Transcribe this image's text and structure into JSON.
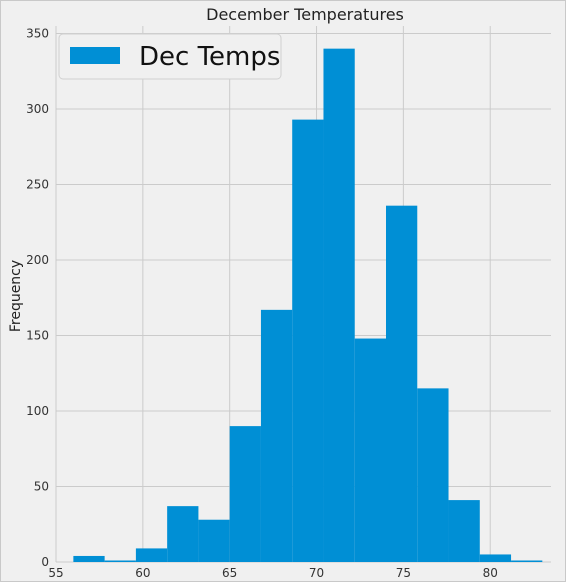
{
  "chart_data": {
    "type": "bar",
    "title": "December Temperatures",
    "xlabel": "",
    "ylabel": "Frequency",
    "legend": {
      "placement": "top-left",
      "label": "Dec Temps"
    },
    "bar_color": "#008fd5",
    "grid": true,
    "xlim": [
      55,
      83.5
    ],
    "ylim": [
      0,
      355
    ],
    "xticks": [
      55,
      60,
      65,
      70,
      75,
      80
    ],
    "yticks": [
      0,
      50,
      100,
      150,
      200,
      250,
      300,
      350
    ],
    "bins": [
      {
        "x0": 56.0,
        "x1": 57.8,
        "value": 4
      },
      {
        "x0": 57.8,
        "x1": 59.6,
        "value": 1
      },
      {
        "x0": 59.6,
        "x1": 61.4,
        "value": 9
      },
      {
        "x0": 61.4,
        "x1": 63.2,
        "value": 37
      },
      {
        "x0": 63.2,
        "x1": 65.0,
        "value": 28
      },
      {
        "x0": 65.0,
        "x1": 66.8,
        "value": 90
      },
      {
        "x0": 66.8,
        "x1": 68.6,
        "value": 167
      },
      {
        "x0": 68.6,
        "x1": 70.4,
        "value": 293
      },
      {
        "x0": 70.4,
        "x1": 72.2,
        "value": 340
      },
      {
        "x0": 72.2,
        "x1": 74.0,
        "value": 148
      },
      {
        "x0": 74.0,
        "x1": 75.8,
        "value": 236
      },
      {
        "x0": 75.8,
        "x1": 77.6,
        "value": 115
      },
      {
        "x0": 77.6,
        "x1": 79.4,
        "value": 41
      },
      {
        "x0": 79.4,
        "x1": 81.2,
        "value": 5
      },
      {
        "x0": 81.2,
        "x1": 83.0,
        "value": 1
      }
    ]
  }
}
